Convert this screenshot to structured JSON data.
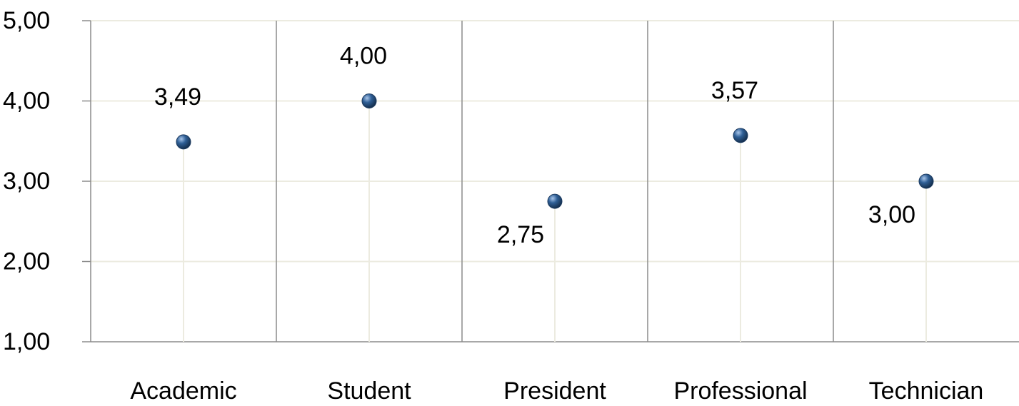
{
  "chart_data": {
    "type": "scatter",
    "categories": [
      "Academic",
      "Student",
      "President",
      "Professional",
      "Technician"
    ],
    "values": [
      3.49,
      4.0,
      2.75,
      3.57,
      3.0
    ],
    "value_labels": [
      "3,49",
      "4,00",
      "2,75",
      "3,57",
      "3,00"
    ],
    "label_placement": [
      "above",
      "above",
      "below",
      "above",
      "below"
    ],
    "y_ticks": [
      1,
      2,
      3,
      4,
      5
    ],
    "y_tick_labels": [
      "1,00",
      "2,00",
      "3,00",
      "4,00",
      "5,00"
    ],
    "ylim": [
      1,
      5
    ],
    "grid": true,
    "drop_lines": true,
    "legend": false,
    "marker_color": "#2f5f96",
    "marker_highlight": "#a9c6ea",
    "gridline_color": "#ecebe0",
    "category_divider_color": "#8c8c8c",
    "axis_color": "#8c8c8c"
  }
}
